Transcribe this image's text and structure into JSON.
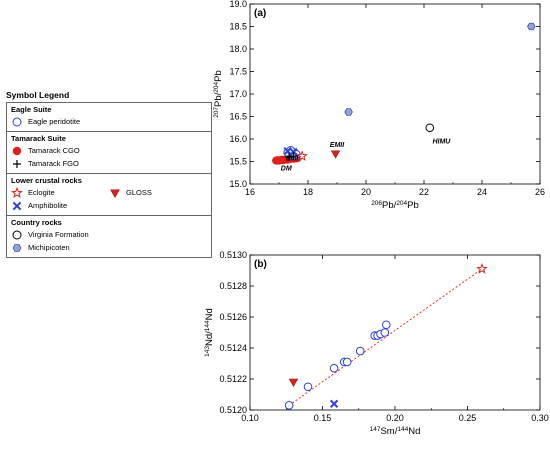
{
  "legend": {
    "title": "Symbol Legend",
    "groups": [
      {
        "title": "Eagle Suite",
        "items": [
          {
            "label": "Eagle peridotite",
            "symbol": "open-circle",
            "color": "#2b3fd6"
          }
        ]
      },
      {
        "title": "Tamarack Suite",
        "items": [
          {
            "label": "Tamarack CGO",
            "symbol": "filled-circle",
            "color": "#e0201b"
          },
          {
            "label": "Tamarack FGO",
            "symbol": "plus",
            "color": "#000000"
          }
        ]
      },
      {
        "title": "Lower crustal rocks",
        "items": [
          {
            "label": "Eclogite",
            "symbol": "star",
            "color": "#e0201b"
          },
          {
            "label": "GLOSS",
            "symbol": "down-triangle",
            "color": "#e0201b"
          },
          {
            "label": "Amphibolite",
            "symbol": "x-cross",
            "color": "#2b3fd6"
          }
        ]
      },
      {
        "title": "Country rocks",
        "items": [
          {
            "label": "Virginia Formation",
            "symbol": "open-circle",
            "color": "#000000"
          },
          {
            "label": "Michipicoten",
            "symbol": "filled-hexagon",
            "color": "#8fa3e0"
          }
        ]
      }
    ]
  },
  "chart_data": [
    {
      "type": "scatter",
      "panel_label": "(a)",
      "xlabel": "206Pb/204Pb",
      "ylabel": "207Pb/204Pb",
      "xlim": [
        16,
        26
      ],
      "ylim": [
        15.0,
        19.0
      ],
      "xticks": [
        "16",
        "18",
        "20",
        "22",
        "24",
        "26"
      ],
      "yticks": [
        "15.0",
        "15.5",
        "16.0",
        "16.5",
        "17.0",
        "17.5",
        "18.0",
        "18.5",
        "19.0"
      ],
      "annotations": [
        {
          "text": "EMI",
          "x": 17.45,
          "y": 15.52
        },
        {
          "text": "EMII",
          "x": 19.0,
          "y": 15.82
        },
        {
          "text": "HIMU",
          "x": 22.6,
          "y": 15.9
        },
        {
          "text": "DM",
          "x": 17.25,
          "y": 15.3
        }
      ],
      "series": [
        {
          "name": "Eagle peridotite",
          "symbol": "open-circle",
          "color": "#2b3fd6",
          "x": [
            17.3,
            17.45,
            17.55,
            17.4,
            17.6,
            17.5
          ],
          "y": [
            15.7,
            15.72,
            15.68,
            15.75,
            15.66,
            15.62
          ]
        },
        {
          "name": "Tamarack CGO",
          "symbol": "filled-circle",
          "color": "#e0201b",
          "x": [
            16.9,
            16.95,
            17.0,
            17.05,
            17.1,
            17.15,
            17.2,
            17.25,
            17.3,
            17.35,
            17.4,
            17.5,
            17.6,
            17.65
          ],
          "y": [
            15.52,
            15.53,
            15.52,
            15.53,
            15.54,
            15.53,
            15.54,
            15.55,
            15.54,
            15.55,
            15.56,
            15.56,
            15.57,
            15.58
          ]
        },
        {
          "name": "Tamarack FGO",
          "symbol": "plus",
          "color": "#000000",
          "x": [
            17.35,
            17.5
          ],
          "y": [
            15.6,
            15.62
          ]
        },
        {
          "name": "Eclogite",
          "symbol": "star",
          "color": "#e0201b",
          "x": [
            17.8
          ],
          "y": [
            15.62
          ]
        },
        {
          "name": "GLOSS",
          "symbol": "down-triangle",
          "color": "#e0201b",
          "x": [
            18.95
          ],
          "y": [
            15.67
          ]
        },
        {
          "name": "Amphibolite",
          "symbol": "x-cross",
          "color": "#2b3fd6",
          "x": [
            17.3,
            17.5
          ],
          "y": [
            15.73,
            15.71
          ]
        },
        {
          "name": "Virginia Formation",
          "symbol": "open-circle",
          "color": "#000000",
          "x": [
            22.2
          ],
          "y": [
            16.25
          ]
        },
        {
          "name": "Michipicoten",
          "symbol": "filled-hexagon",
          "color": "#8fa3e0",
          "x": [
            19.4,
            25.7
          ],
          "y": [
            16.6,
            18.5
          ]
        }
      ]
    },
    {
      "type": "scatter",
      "panel_label": "(b)",
      "xlabel": "147Sm/144Nd",
      "ylabel": "143Nd/144Nd",
      "xlim": [
        0.1,
        0.3
      ],
      "ylim": [
        0.512,
        0.513
      ],
      "xticks": [
        "0.10",
        "0.15",
        "0.20",
        "0.25",
        "0.30"
      ],
      "yticks": [
        "0.5120",
        "0.5122",
        "0.5124",
        "0.5126",
        "0.5128",
        "0.5130"
      ],
      "trendline": {
        "x": [
          0.127,
          0.26
        ],
        "y": [
          0.51203,
          0.51291
        ],
        "color": "#e0201b",
        "style": "dotted"
      },
      "series": [
        {
          "name": "Eagle peridotite",
          "symbol": "open-circle",
          "color": "#2b3fd6",
          "x": [
            0.127,
            0.14,
            0.158,
            0.165,
            0.167,
            0.176,
            0.186,
            0.188,
            0.19,
            0.193,
            0.194
          ],
          "y": [
            0.51203,
            0.51215,
            0.51227,
            0.51231,
            0.51231,
            0.51238,
            0.51248,
            0.51248,
            0.51249,
            0.5125,
            0.51255
          ]
        },
        {
          "name": "Eclogite",
          "symbol": "star",
          "color": "#e0201b",
          "x": [
            0.26
          ],
          "y": [
            0.51291
          ]
        },
        {
          "name": "GLOSS",
          "symbol": "down-triangle",
          "color": "#e0201b",
          "x": [
            0.13
          ],
          "y": [
            0.51218
          ]
        },
        {
          "name": "Amphibolite",
          "symbol": "x-cross",
          "color": "#2b3fd6",
          "x": [
            0.158
          ],
          "y": [
            0.51204
          ]
        }
      ]
    }
  ]
}
